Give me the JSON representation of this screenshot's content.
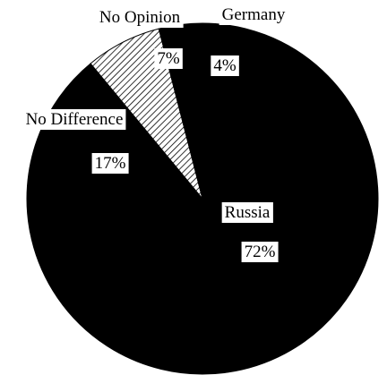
{
  "chart_data": {
    "type": "pie",
    "title": "",
    "slices": [
      {
        "name": "Russia",
        "value": 72,
        "value_label": "72%",
        "color": "#000000",
        "pattern": "solid"
      },
      {
        "name": "No Difference",
        "value": 17,
        "value_label": "17%",
        "color": "#000000",
        "pattern": "solid"
      },
      {
        "name": "No Opinion",
        "value": 7,
        "value_label": "7%",
        "color": "#ffffff",
        "pattern": "diagonal-hatch"
      },
      {
        "name": "Germany",
        "value": 4,
        "value_label": "4%",
        "color": "#000000",
        "pattern": "solid"
      }
    ],
    "legend": "none",
    "label_style": "inline labels on white boxes"
  }
}
